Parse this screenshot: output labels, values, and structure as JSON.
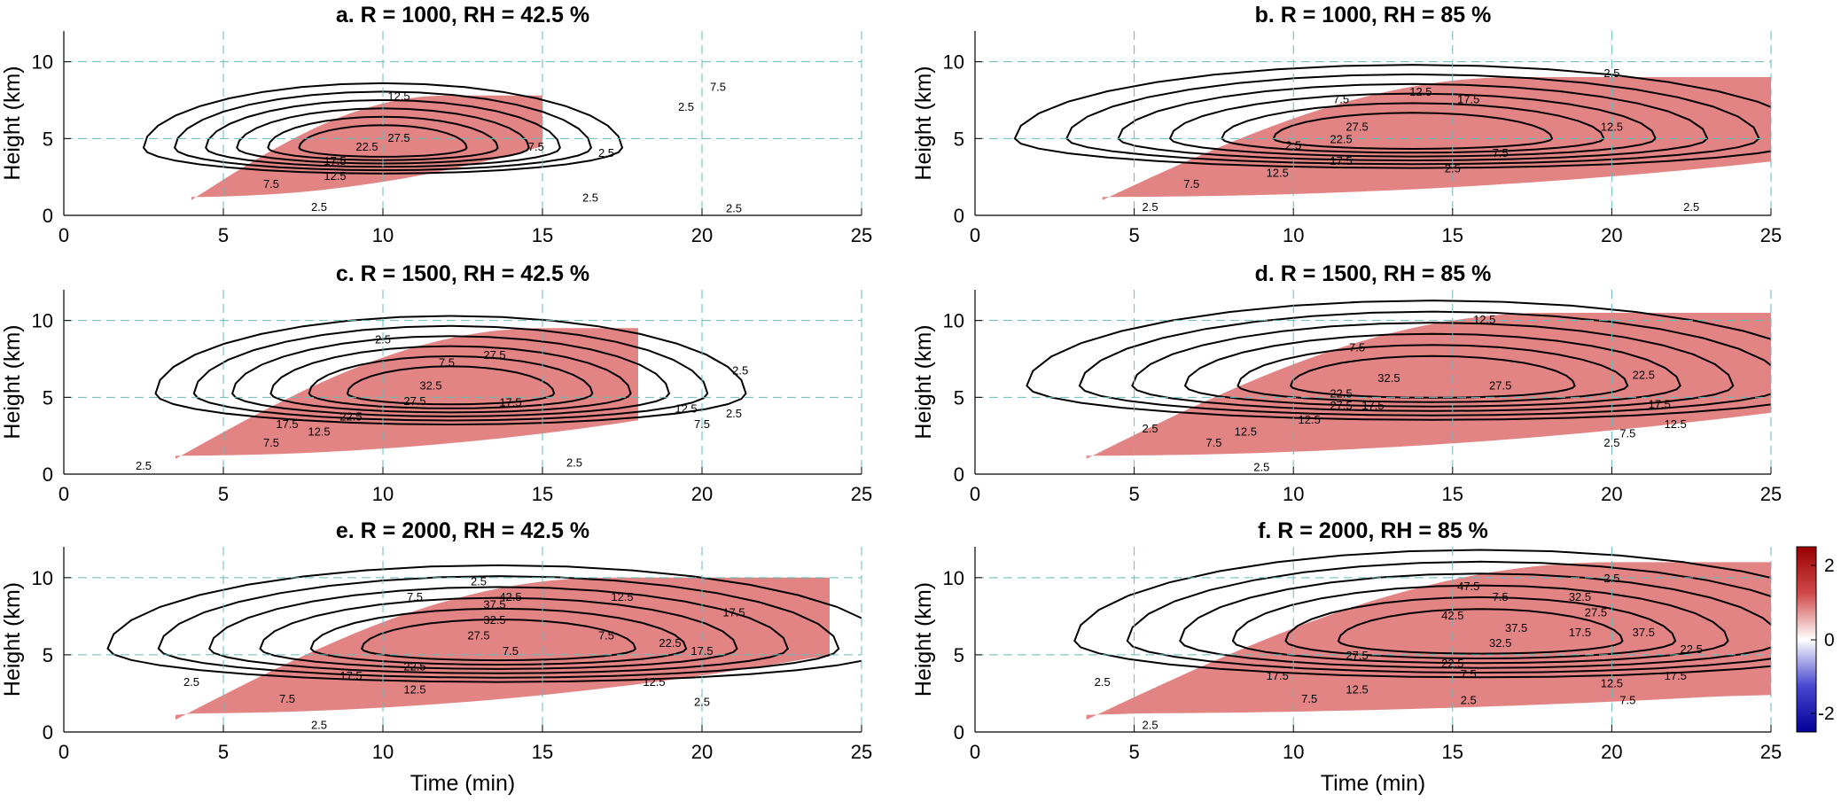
{
  "chart_data": [
    {
      "type": "contour",
      "title": "a. R = 1000, RH = 42.5 %",
      "xlabel": "",
      "ylabel": "Height (km)",
      "xlim": [
        0,
        25
      ],
      "ylim": [
        0,
        12
      ],
      "xticks": [
        "0",
        "5",
        "10",
        "15",
        "20",
        "25"
      ],
      "yticks": [
        "0",
        "5",
        "10"
      ],
      "grid": true,
      "contour_labels": [
        "2.5",
        "2.5",
        "2.5",
        "2.5",
        "2.5",
        "7.5",
        "7.5",
        "7.5",
        "12.5",
        "12.5",
        "17.5",
        "22.5",
        "27.5"
      ]
    },
    {
      "type": "contour",
      "title": "b. R = 1000, RH = 85 %",
      "xlabel": "",
      "ylabel": "Height (km)",
      "xlim": [
        0,
        25
      ],
      "ylim": [
        0,
        12
      ],
      "xticks": [
        "0",
        "5",
        "10",
        "15",
        "20",
        "25"
      ],
      "yticks": [
        "0",
        "5",
        "10"
      ],
      "grid": true,
      "contour_labels": [
        "2.5",
        "2.5",
        "2.5",
        "2.5",
        "2.5",
        "7.5",
        "7.5",
        "7.5",
        "12.5",
        "12.5",
        "12.5",
        "17.5",
        "17.5",
        "22.5",
        "27.5"
      ]
    },
    {
      "type": "contour",
      "title": "c. R = 1500, RH = 42.5 %",
      "xlabel": "",
      "ylabel": "Height (km)",
      "xlim": [
        0,
        25
      ],
      "ylim": [
        0,
        12
      ],
      "xticks": [
        "0",
        "5",
        "10",
        "15",
        "20",
        "25"
      ],
      "yticks": [
        "0",
        "5",
        "10"
      ],
      "grid": true,
      "contour_labels": [
        "2.5",
        "2.5",
        "2.5",
        "2.5",
        "2.5",
        "7.5",
        "7.5",
        "7.5",
        "12.5",
        "12.5",
        "17.5",
        "17.5",
        "22.5",
        "27.5",
        "27.5",
        "32.5"
      ]
    },
    {
      "type": "contour",
      "title": "d. R = 1500, RH = 85 %",
      "xlabel": "",
      "ylabel": "Height (km)",
      "xlim": [
        0,
        25
      ],
      "ylim": [
        0,
        12
      ],
      "xticks": [
        "0",
        "5",
        "10",
        "15",
        "20",
        "25"
      ],
      "yticks": [
        "0",
        "5",
        "10"
      ],
      "grid": true,
      "contour_labels": [
        "2.5",
        "2.5",
        "2.5",
        "7.5",
        "7.5",
        "7.5",
        "12.5",
        "12.5",
        "12.5",
        "12.5",
        "17.5",
        "17.5",
        "22.5",
        "22.5",
        "27.5",
        "27.5",
        "32.5"
      ]
    },
    {
      "type": "contour",
      "title": "e. R = 2000, RH = 42.5 %",
      "xlabel": "Time (min)",
      "ylabel": "Height (km)",
      "xlim": [
        0,
        25
      ],
      "ylim": [
        0,
        12
      ],
      "xticks": [
        "0",
        "5",
        "10",
        "15",
        "20",
        "25"
      ],
      "yticks": [
        "0",
        "5",
        "10"
      ],
      "grid": true,
      "contour_labels": [
        "2.5",
        "2.5",
        "2.5",
        "2.5",
        "7.5",
        "7.5",
        "7.5",
        "7.5",
        "12.5",
        "12.5",
        "12.5",
        "17.5",
        "17.5",
        "17.5",
        "22.5",
        "22.5",
        "27.5",
        "32.5",
        "37.5",
        "42.5"
      ]
    },
    {
      "type": "contour",
      "title": "f. R = 2000, RH = 85 %",
      "xlabel": "Time (min)",
      "ylabel": "Height (km)",
      "xlim": [
        0,
        25
      ],
      "ylim": [
        0,
        12
      ],
      "xticks": [
        "0",
        "5",
        "10",
        "15",
        "20",
        "25"
      ],
      "yticks": [
        "0",
        "5",
        "10"
      ],
      "grid": true,
      "contour_labels": [
        "2.5",
        "2.5",
        "2.5",
        "2.5",
        "7.5",
        "7.5",
        "7.5",
        "7.5",
        "12.5",
        "12.5",
        "17.5",
        "17.5",
        "17.5",
        "22.5",
        "22.5",
        "27.5",
        "27.5",
        "32.5",
        "32.5",
        "37.5",
        "37.5",
        "42.5",
        "47.5"
      ]
    }
  ],
  "colorbar": {
    "ticks": [
      "2",
      "0",
      "-2"
    ],
    "range": [
      -2.5,
      2.5
    ],
    "colors": {
      "high": "#990000",
      "mid": "#ffffff",
      "low": "#000099"
    }
  },
  "colors": {
    "fill": "#cc1f1f",
    "grid": "#66bbbb",
    "contour": "#000000"
  }
}
